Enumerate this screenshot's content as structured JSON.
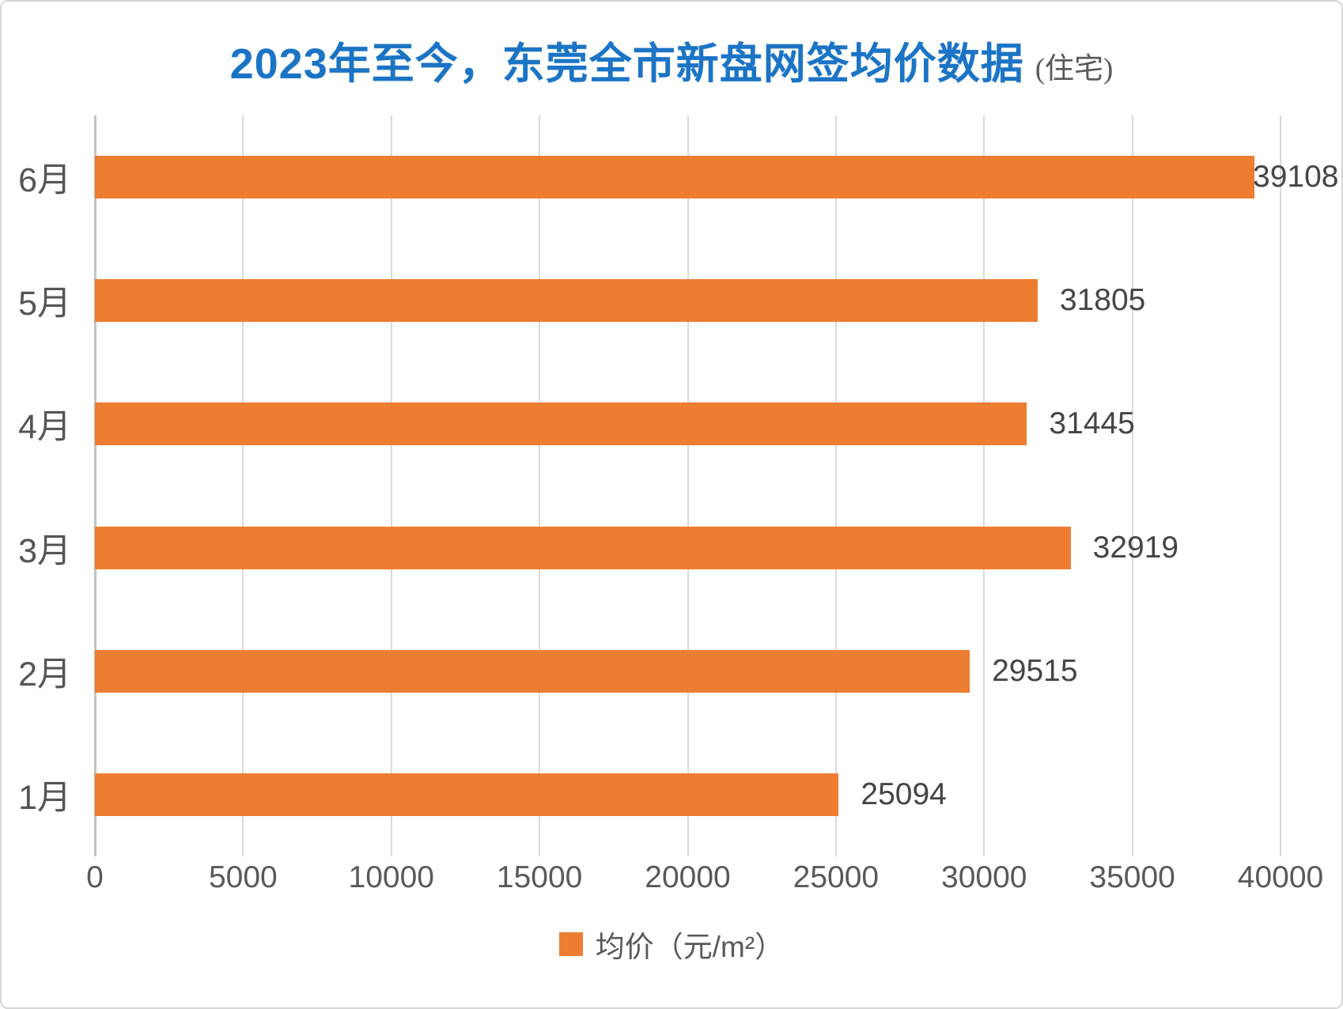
{
  "chart_data": {
    "type": "bar",
    "orientation": "horizontal",
    "title": "2023年至今，东莞全市新盘网签均价数据",
    "title_suffix": "(住宅)",
    "categories": [
      "6月",
      "5月",
      "4月",
      "3月",
      "2月",
      "1月"
    ],
    "values": [
      39108,
      31805,
      31445,
      32919,
      29515,
      25094
    ],
    "series_name": "均价",
    "legend_label": "均价（元/m²）",
    "xlim": [
      0,
      40000
    ],
    "x_ticks": [
      0,
      5000,
      10000,
      15000,
      20000,
      25000,
      30000,
      35000,
      40000
    ],
    "grid": true,
    "legend_position": "bottom",
    "colors": {
      "bar": "#ed7d31",
      "title": "#1b74c5",
      "gridline": "#dadada",
      "text": "#595959"
    }
  }
}
